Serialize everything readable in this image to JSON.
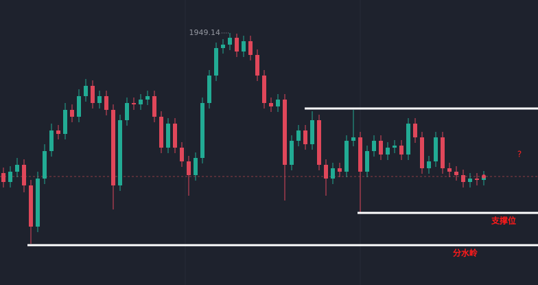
{
  "chart_data": {
    "type": "candlestick",
    "up_color": "#22ab94",
    "down_color": "#e0475a",
    "ylim": [
      1912.44,
      1953.94
    ],
    "open": [
      1928.74,
      1927.44,
      1928.94,
      1929.94,
      1926.94,
      1920.94,
      1927.94,
      1931.94,
      1934.94,
      1934.44,
      1937.94,
      1936.94,
      1939.94,
      1941.44,
      1938.94,
      1939.94,
      1937.94,
      1926.94,
      1936.44,
      1938.94,
      1938.74,
      1939.44,
      1939.94,
      1936.94,
      1932.44,
      1935.94,
      1932.44,
      1930.44,
      1928.44,
      1930.94,
      1938.94,
      1942.94,
      1946.94,
      1947.44,
      1948.44,
      1946.44,
      1947.94,
      1945.94,
      1942.94,
      1938.94,
      1938.44,
      1939.44,
      1929.94,
      1933.44,
      1934.94,
      1932.94,
      1936.44,
      1929.94,
      1927.94,
      1929.44,
      1928.94,
      1933.44,
      1933.94,
      1928.94,
      1931.94,
      1933.44,
      1931.44,
      1932.44,
      1932.74,
      1931.44,
      1935.94,
      1933.94,
      1929.44,
      1930.44,
      1933.94,
      1929.44,
      1928.94,
      1928.44,
      1927.44,
      1927.94,
      1927.74
    ],
    "high": [
      1929.54,
      1929.74,
      1930.94,
      1930.74,
      1927.74,
      1928.94,
      1932.94,
      1935.94,
      1935.74,
      1938.94,
      1938.74,
      1940.94,
      1942.44,
      1942.24,
      1940.74,
      1940.74,
      1938.74,
      1937.24,
      1939.74,
      1939.74,
      1940.24,
      1940.74,
      1940.74,
      1937.74,
      1936.74,
      1936.74,
      1933.24,
      1931.24,
      1931.74,
      1939.74,
      1943.74,
      1947.74,
      1948.24,
      1949.14,
      1949.04,
      1948.74,
      1948.74,
      1946.74,
      1943.74,
      1939.74,
      1940.24,
      1940.24,
      1934.24,
      1935.74,
      1935.74,
      1937.74,
      1937.24,
      1930.74,
      1930.24,
      1930.24,
      1934.24,
      1937.94,
      1934.74,
      1932.74,
      1934.24,
      1934.24,
      1933.24,
      1933.54,
      1933.54,
      1936.74,
      1936.74,
      1934.74,
      1931.24,
      1934.74,
      1934.74,
      1930.24,
      1929.74,
      1929.24,
      1928.74,
      1928.74,
      1929.04
    ],
    "low": [
      1926.64,
      1926.64,
      1928.14,
      1925.94,
      1918.44,
      1920.14,
      1927.14,
      1931.14,
      1933.64,
      1933.64,
      1936.14,
      1936.14,
      1939.14,
      1938.14,
      1938.14,
      1937.14,
      1923.44,
      1926.14,
      1935.64,
      1937.94,
      1937.94,
      1938.64,
      1936.14,
      1931.64,
      1931.64,
      1931.64,
      1929.64,
      1925.44,
      1927.64,
      1930.14,
      1938.14,
      1942.14,
      1946.14,
      1946.64,
      1945.64,
      1945.64,
      1945.14,
      1942.14,
      1938.14,
      1937.64,
      1937.64,
      1924.74,
      1929.14,
      1932.64,
      1932.14,
      1932.14,
      1929.14,
      1925.44,
      1927.14,
      1928.14,
      1928.14,
      1932.64,
      1922.94,
      1928.14,
      1931.14,
      1930.64,
      1930.64,
      1931.64,
      1930.64,
      1930.64,
      1933.14,
      1928.64,
      1928.64,
      1929.64,
      1928.64,
      1928.14,
      1927.64,
      1926.64,
      1926.64,
      1926.94,
      1926.94
    ],
    "close": [
      1927.44,
      1928.94,
      1929.94,
      1926.94,
      1920.94,
      1927.94,
      1931.94,
      1934.94,
      1934.44,
      1937.94,
      1936.94,
      1939.94,
      1941.44,
      1938.94,
      1939.94,
      1937.94,
      1926.94,
      1936.44,
      1938.94,
      1938.74,
      1939.44,
      1939.94,
      1936.94,
      1932.44,
      1935.94,
      1932.44,
      1930.44,
      1928.44,
      1930.94,
      1938.94,
      1942.94,
      1946.94,
      1947.44,
      1948.44,
      1946.44,
      1947.94,
      1945.94,
      1942.94,
      1938.94,
      1938.44,
      1939.44,
      1929.94,
      1933.44,
      1934.94,
      1932.94,
      1936.44,
      1929.94,
      1927.94,
      1929.44,
      1928.94,
      1933.44,
      1933.94,
      1928.94,
      1931.94,
      1933.44,
      1931.44,
      1932.44,
      1932.74,
      1931.44,
      1935.94,
      1933.94,
      1929.44,
      1930.44,
      1933.94,
      1929.44,
      1928.94,
      1928.44,
      1927.44,
      1927.94,
      1927.74,
      1928.24
    ],
    "levels": [
      {
        "value": 1938.14
      },
      {
        "value": 1922.94,
        "label": "支撑位"
      },
      {
        "value": 1918.24,
        "label": "分水岭"
      }
    ],
    "annotations": [
      "?"
    ]
  }
}
